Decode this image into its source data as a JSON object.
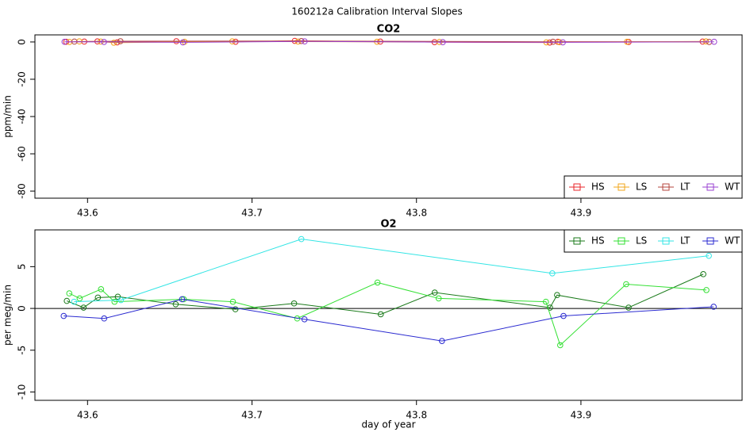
{
  "title": "160212a   Calibration Interval Slopes",
  "chart_data": [
    {
      "type": "line",
      "title": "CO2",
      "y_label": "ppm/min",
      "xlim": [
        43.568,
        43.998
      ],
      "xticks": [
        43.6,
        43.7,
        43.8,
        43.9
      ],
      "ylim": [
        -83.8,
        3.8
      ],
      "yticks": [
        0,
        -20,
        -40,
        -60,
        -80
      ],
      "legend": "bottomright",
      "series": [
        {
          "name": "HS",
          "color": "#e8242a",
          "x": [
            43.587,
            43.598,
            43.606,
            43.618,
            43.654,
            43.69,
            43.726,
            43.778,
            43.811,
            43.881,
            43.886,
            43.929,
            43.974
          ],
          "values": [
            0.1,
            0.2,
            0.3,
            -0.2,
            0.4,
            0.1,
            0.6,
            0.2,
            -0.1,
            -0.3,
            0.1,
            0,
            0.2
          ]
        },
        {
          "name": "LS",
          "color": "#f2a51a",
          "x": [
            43.589,
            43.595,
            43.608,
            43.616,
            43.659,
            43.688,
            43.728,
            43.776,
            43.814,
            43.879,
            43.887,
            43.928,
            43.976
          ],
          "values": [
            0,
            0.3,
            0.2,
            -0.4,
            0.1,
            0.3,
            0.2,
            0.1,
            0,
            -0.2,
            -0.1,
            0.1,
            0.3
          ]
        },
        {
          "name": "LT",
          "color": "#b4453e",
          "x": [
            43.592,
            43.62,
            43.73,
            43.883,
            43.978
          ],
          "values": [
            0.2,
            0.4,
            0.5,
            0.1,
            0
          ]
        },
        {
          "name": "WT",
          "color": "#9a40d0",
          "x": [
            43.586,
            43.61,
            43.658,
            43.732,
            43.816,
            43.889,
            43.981
          ],
          "values": [
            0.1,
            0,
            -0.2,
            0.3,
            -0.1,
            -0.2,
            0.1
          ]
        }
      ]
    },
    {
      "type": "line",
      "title": "O2",
      "y_label": "per meg/min",
      "x_label": "day of year",
      "xlim": [
        43.568,
        43.998
      ],
      "xticks": [
        43.6,
        43.7,
        43.8,
        43.9
      ],
      "ylim": [
        -11,
        9.4
      ],
      "yticks": [
        5,
        0,
        -5,
        -10
      ],
      "reference_line": 0,
      "legend": "topright",
      "series": [
        {
          "name": "HS",
          "color": "#1a7a1a",
          "x": [
            43.5874,
            43.5976,
            43.6063,
            43.6184,
            43.6536,
            43.6899,
            43.7256,
            43.7783,
            43.8111,
            43.8812,
            43.8855,
            43.929,
            43.9744
          ],
          "values": [
            0.9,
            0.1,
            1.3,
            1.4,
            0.5,
            -0.1,
            0.6,
            -0.7,
            1.9,
            0.1,
            1.6,
            0.1,
            4.1
          ]
        },
        {
          "name": "LS",
          "color": "#33e033",
          "x": [
            43.5889,
            43.5952,
            43.6082,
            43.6164,
            43.6585,
            43.6884,
            43.7275,
            43.7763,
            43.8135,
            43.8787,
            43.8874,
            43.9275,
            43.9763
          ],
          "values": [
            1.8,
            1.2,
            2.3,
            0.8,
            1.1,
            0.8,
            -1.2,
            3.1,
            1.2,
            0.8,
            -4.4,
            2.9,
            2.2
          ]
        },
        {
          "name": "LT",
          "color": "#33e5e5",
          "x": [
            43.5918,
            43.6203,
            43.73,
            43.8826,
            43.9778
          ],
          "values": [
            0.8,
            1.0,
            8.3,
            4.2,
            6.3
          ]
        },
        {
          "name": "WT",
          "color": "#2a2ad0",
          "x": [
            43.5855,
            43.6101,
            43.6575,
            43.7319,
            43.8155,
            43.8894,
            43.9807
          ],
          "values": [
            -0.9,
            -1.2,
            1.1,
            -1.3,
            -3.9,
            -0.9,
            0.2
          ]
        }
      ]
    }
  ]
}
